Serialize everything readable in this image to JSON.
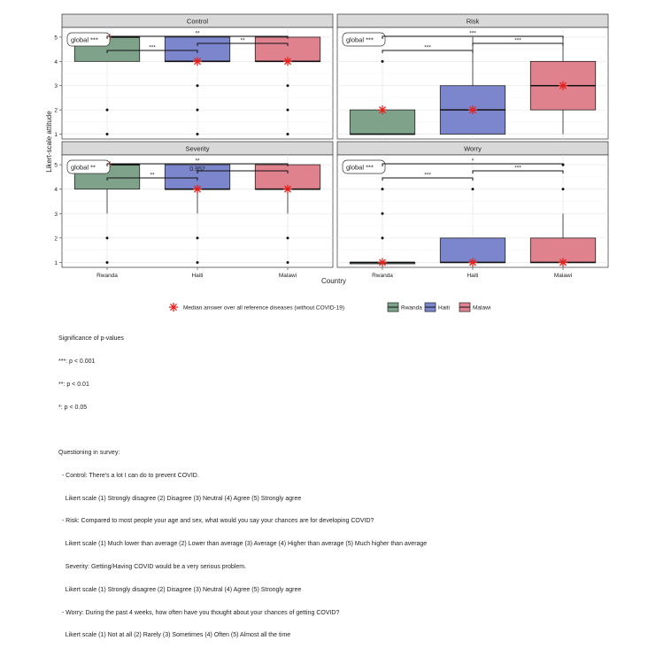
{
  "chart_data": {
    "type": "boxplot",
    "layout": "2x2 facets",
    "xlabel": "Country",
    "ylabel": "Likert-scale attitude",
    "categories": [
      "Rwanda",
      "Haiti",
      "Malawi"
    ],
    "y_ticks": [
      1,
      2,
      3,
      4,
      5
    ],
    "ylim": [
      0.8,
      5.4
    ],
    "colors": {
      "Rwanda": "#7fa38a",
      "Haiti": "#7b86cc",
      "Malawi": "#e0818e",
      "median_star": "#e8201c"
    },
    "legend": {
      "star_label": "Median answer over all reference diseases (without COVID-19)",
      "countries": [
        "Rwanda",
        "Haiti",
        "Malawi"
      ]
    },
    "panels": [
      {
        "title": "Control",
        "global_label": "global ***",
        "boxes": [
          {
            "country": "Rwanda",
            "q1": 4,
            "median": 5,
            "q3": 5,
            "whisker_low": 4,
            "whisker_high": 5,
            "outliers": [
              1,
              2
            ]
          },
          {
            "country": "Haiti",
            "q1": 4,
            "median": 4,
            "q3": 5,
            "whisker_low": 4,
            "whisker_high": 5,
            "outliers": [
              1,
              2,
              3
            ]
          },
          {
            "country": "Malawi",
            "q1": 4,
            "median": 4,
            "q3": 5,
            "whisker_low": 4,
            "whisker_high": 5,
            "outliers": [
              1,
              2,
              3
            ]
          }
        ],
        "stars": [
          5,
          4,
          4
        ],
        "brackets": [
          {
            "from": "Rwanda",
            "to": "Haiti",
            "label": "***",
            "level": 0
          },
          {
            "from": "Haiti",
            "to": "Malawi",
            "label": "**",
            "level": 1
          },
          {
            "from": "Rwanda",
            "to": "Malawi",
            "label": "**",
            "level": 2
          }
        ],
        "extra_text": []
      },
      {
        "title": "Risk",
        "global_label": "global ***",
        "boxes": [
          {
            "country": "Rwanda",
            "q1": 1,
            "median": 1,
            "q3": 2,
            "whisker_low": 1,
            "whisker_high": 2,
            "outliers": [
              4,
              5
            ]
          },
          {
            "country": "Haiti",
            "q1": 1,
            "median": 2,
            "q3": 3,
            "whisker_low": 1,
            "whisker_high": 5,
            "outliers": []
          },
          {
            "country": "Malawi",
            "q1": 2,
            "median": 3,
            "q3": 4,
            "whisker_low": 1,
            "whisker_high": 5,
            "outliers": []
          }
        ],
        "stars": [
          2,
          2,
          3
        ],
        "brackets": [
          {
            "from": "Rwanda",
            "to": "Haiti",
            "label": "***",
            "level": 0
          },
          {
            "from": "Haiti",
            "to": "Malawi",
            "label": "***",
            "level": 1
          },
          {
            "from": "Rwanda",
            "to": "Malawi",
            "label": "***",
            "level": 2
          }
        ],
        "extra_text": []
      },
      {
        "title": "Severity",
        "global_label": "global **",
        "boxes": [
          {
            "country": "Rwanda",
            "q1": 4,
            "median": 5,
            "q3": 5,
            "whisker_low": 3,
            "whisker_high": 5,
            "outliers": [
              1,
              2
            ]
          },
          {
            "country": "Haiti",
            "q1": 4,
            "median": 4,
            "q3": 5,
            "whisker_low": 3,
            "whisker_high": 5,
            "outliers": [
              1,
              2
            ]
          },
          {
            "country": "Malawi",
            "q1": 4,
            "median": 4,
            "q3": 5,
            "whisker_low": 3,
            "whisker_high": 5,
            "outliers": [
              1,
              2
            ]
          }
        ],
        "stars": [
          5,
          4,
          4
        ],
        "brackets": [
          {
            "from": "Rwanda",
            "to": "Haiti",
            "label": "**",
            "level": 0
          },
          {
            "from": "Haiti",
            "to": "Malawi",
            "label": "",
            "level": 1
          },
          {
            "from": "Rwanda",
            "to": "Malawi",
            "label": "**",
            "level": 2
          }
        ],
        "extra_text": [
          "0.952"
        ]
      },
      {
        "title": "Worry",
        "global_label": "global ***",
        "boxes": [
          {
            "country": "Rwanda",
            "q1": 1,
            "median": 1,
            "q3": 1,
            "whisker_low": 1,
            "whisker_high": 1,
            "outliers": [
              2,
              3,
              4
            ]
          },
          {
            "country": "Haiti",
            "q1": 1,
            "median": 1,
            "q3": 2,
            "whisker_low": 1,
            "whisker_high": 2,
            "outliers": [
              4
            ]
          },
          {
            "country": "Malawi",
            "q1": 1,
            "median": 1,
            "q3": 2,
            "whisker_low": 1,
            "whisker_high": 3,
            "outliers": [
              4,
              5
            ]
          }
        ],
        "stars": [
          1,
          1,
          1
        ],
        "brackets": [
          {
            "from": "Rwanda",
            "to": "Haiti",
            "label": "***",
            "level": 0
          },
          {
            "from": "Haiti",
            "to": "Malawi",
            "label": "***",
            "level": 1
          },
          {
            "from": "Rwanda",
            "to": "Malawi",
            "label": "*",
            "level": 2
          }
        ],
        "extra_text": []
      }
    ]
  },
  "notes": {
    "significance_title": "Significance of p-values",
    "significance_lines": [
      "***: p < 0.001",
      "**: p < 0.01",
      "*: p < 0.05"
    ],
    "survey_title": "Questioning in survey:",
    "survey_lines": [
      "  - Control: There's a lot I can do to prevent COVID.",
      "    Likert scale (1) Strongly disagree (2) Disagree (3) Neutral (4) Agree (5) Strongly agree",
      "  - Risk: Compared to most people your age and sex, what would you say your chances are for developing COVID?",
      "    Likert scale (1) Much lower than average (2) Lower than average (3) Average (4) Higher than average (5) Much higher than average",
      "    Severity: Getting/Having COVID would be a very serious problem.",
      "    Likert scale (1) Strongly disagree (2) Disagree (3) Neutral (4) Agree (5) Strongly agree",
      "  - Worry: During the past 4 weeks, how often have you thought about your chances of getting COVID?",
      "    Likert scale (1) Not at all (2) Rarely (3) Sometimes (4) Often (5) Almost all the time"
    ]
  }
}
